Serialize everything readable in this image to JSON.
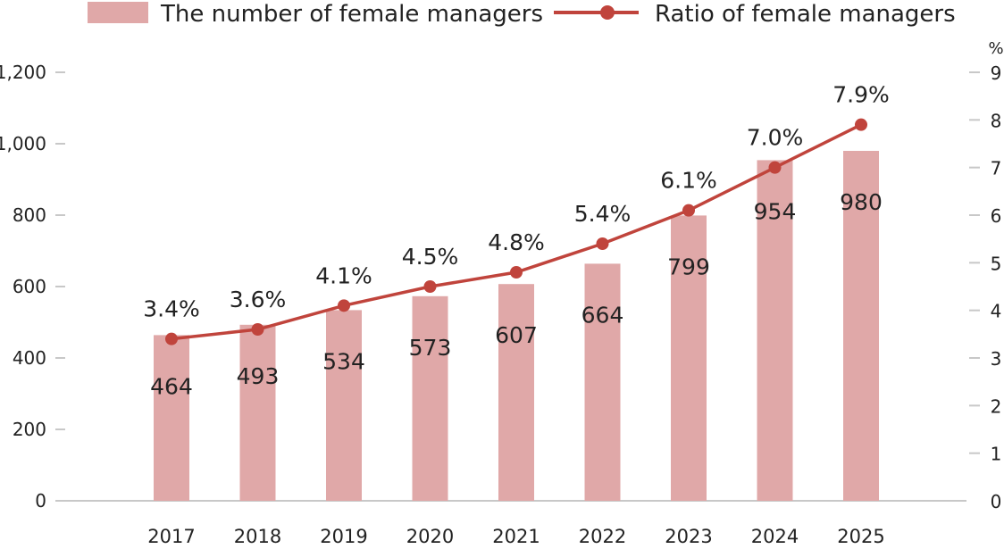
{
  "chart_data": {
    "type": "bar",
    "categories": [
      "2017",
      "2018",
      "2019",
      "2020",
      "2021",
      "2022",
      "2023",
      "2024",
      "2025"
    ],
    "series": [
      {
        "name": "The number of female managers",
        "type": "bar",
        "axis": "left",
        "values": [
          464,
          493,
          534,
          573,
          607,
          664,
          799,
          954,
          980
        ],
        "color": "#e0a8a8"
      },
      {
        "name": "Ratio of female managers",
        "type": "line",
        "axis": "right",
        "values": [
          3.4,
          3.6,
          4.1,
          4.5,
          4.8,
          5.4,
          6.1,
          7.0,
          7.9
        ],
        "color": "#c0443c"
      }
    ],
    "left_axis": {
      "range": [
        0,
        1200
      ],
      "ticks": [
        0,
        200,
        400,
        600,
        800,
        1000,
        1200
      ],
      "tick_labels": [
        "0",
        "200",
        "400",
        "600",
        "800",
        "1,000",
        "1,200"
      ]
    },
    "right_axis": {
      "unit": "%",
      "range": [
        0,
        9
      ],
      "ticks": [
        0,
        1,
        2,
        3,
        4,
        5,
        6,
        7,
        8,
        9
      ]
    },
    "bar_labels": [
      "464",
      "493",
      "534",
      "573",
      "607",
      "664",
      "799",
      "954",
      "980"
    ],
    "line_labels": [
      "3.4%",
      "3.6%",
      "4.1%",
      "4.5%",
      "4.8%",
      "5.4%",
      "6.1%",
      "7.0%",
      "7.9%"
    ],
    "legend": "top",
    "grid": false
  }
}
